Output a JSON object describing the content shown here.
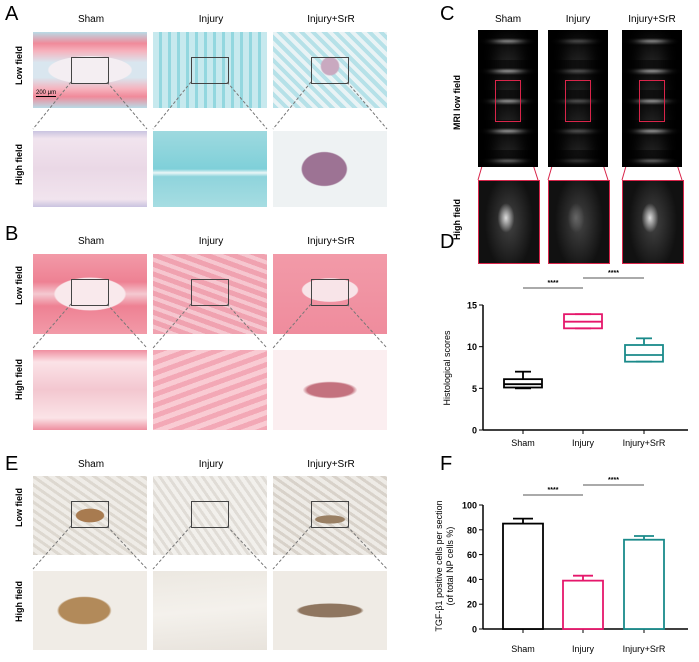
{
  "panels": {
    "A": {
      "label": "A",
      "columns": [
        "Sham",
        "Injury",
        "Injury+SrR"
      ],
      "rows": [
        "Low field",
        "High field"
      ],
      "scale_bar": "200 μm"
    },
    "B": {
      "label": "B",
      "columns": [
        "Sham",
        "Injury",
        "Injury+SrR"
      ],
      "rows": [
        "Low field",
        "High field"
      ]
    },
    "E": {
      "label": "E",
      "columns": [
        "Sham",
        "Injury",
        "Injury+SrR"
      ],
      "rows": [
        "Low field",
        "High field"
      ]
    },
    "C": {
      "label": "C",
      "columns": [
        "Sham",
        "Injury",
        "Injury+SrR"
      ],
      "rows": [
        "MRI low field",
        "High field"
      ]
    },
    "D": {
      "label": "D"
    },
    "F": {
      "label": "F"
    }
  },
  "colors": {
    "sham": "#000000",
    "injury": "#e5176b",
    "srr": "#1a8a8a",
    "mri_box": "#d9254a"
  },
  "chart_data": [
    {
      "type": "box",
      "panel": "D",
      "categories": [
        "Sham",
        "Injury",
        "Injury+SrR"
      ],
      "ylabel": "Histological scores",
      "ylim": [
        0,
        15
      ],
      "yticks": [
        "0",
        "5",
        "10",
        "15"
      ],
      "boxes": [
        {
          "min": 5,
          "q1": 5.1,
          "median": 5.5,
          "q3": 6.1,
          "max": 7
        },
        {
          "min": 12.2,
          "q1": 12.2,
          "median": 13,
          "q3": 13.9,
          "max": 13.9
        },
        {
          "min": 8.2,
          "q1": 8.2,
          "median": 9,
          "q3": 10.2,
          "max": 11
        }
      ],
      "significance": [
        {
          "from": "Sham",
          "to": "Injury",
          "label": "****"
        },
        {
          "from": "Injury",
          "to": "Injury+SrR",
          "label": "****"
        }
      ]
    },
    {
      "type": "bar",
      "panel": "F",
      "categories": [
        "Sham",
        "Injury",
        "Injury+SrR"
      ],
      "ylabel": [
        "TGF-β1 positive cells per section",
        "(of total NP cells %)"
      ],
      "ylim": [
        0,
        100
      ],
      "yticks": [
        "0",
        "20",
        "40",
        "60",
        "80",
        "100"
      ],
      "values": [
        85,
        39,
        72
      ],
      "errors": [
        4,
        4,
        3
      ],
      "significance": [
        {
          "from": "Sham",
          "to": "Injury",
          "label": "****"
        },
        {
          "from": "Injury",
          "to": "Injury+SrR",
          "label": "****"
        }
      ]
    }
  ]
}
